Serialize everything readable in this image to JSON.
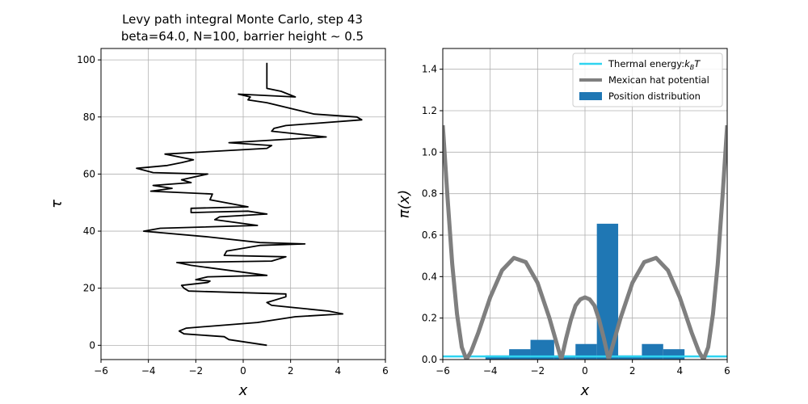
{
  "figure": {
    "title_line1": "Levy path integral Monte Carlo, step 43",
    "title_line2": "beta=64.0, N=100, barrier height$\\sim$0.5"
  },
  "chart_data": [
    {
      "type": "line",
      "title": "Levy path integral Monte Carlo, step 43 beta=64.0, N=100, barrier height ~ 0.5",
      "xlabel": "x",
      "ylabel": "τ",
      "xlim": [
        -6,
        6
      ],
      "ylim": [
        -5,
        104
      ],
      "xticks": [
        -6,
        -4,
        -2,
        0,
        2,
        4,
        6
      ],
      "yticks": [
        0,
        20,
        40,
        60,
        80,
        100
      ],
      "grid": true,
      "color": "#000000",
      "series": [
        {
          "name": "",
          "points": [
            [
              1.0,
              0
            ],
            [
              -0.6,
              2
            ],
            [
              -0.8,
              3
            ],
            [
              -2.5,
              4
            ],
            [
              -2.7,
              5
            ],
            [
              -2.4,
              6
            ],
            [
              0.6,
              8
            ],
            [
              2.2,
              10
            ],
            [
              4.2,
              11
            ],
            [
              3.6,
              12
            ],
            [
              1.2,
              14
            ],
            [
              1.0,
              15
            ],
            [
              1.8,
              17
            ],
            [
              1.8,
              18
            ],
            [
              -2.3,
              19
            ],
            [
              -2.5,
              20
            ],
            [
              -2.6,
              21
            ],
            [
              -1.5,
              22
            ],
            [
              -1.4,
              22.5
            ],
            [
              -2.0,
              23
            ],
            [
              -1.5,
              24
            ],
            [
              1.0,
              24.5
            ],
            [
              -2.2,
              28
            ],
            [
              -2.8,
              29
            ],
            [
              1.2,
              29.5
            ],
            [
              1.8,
              31
            ],
            [
              -0.8,
              31.5
            ],
            [
              -0.7,
              33
            ],
            [
              0.7,
              35
            ],
            [
              2.6,
              35.5
            ],
            [
              0.7,
              36
            ],
            [
              -1.5,
              38
            ],
            [
              -4.2,
              40
            ],
            [
              -3.5,
              41
            ],
            [
              0.6,
              42
            ],
            [
              -1.2,
              44
            ],
            [
              -1.0,
              45
            ],
            [
              1.0,
              46
            ],
            [
              0.2,
              47
            ],
            [
              -2.2,
              46.5
            ],
            [
              -2.2,
              48
            ],
            [
              0.2,
              48.5
            ],
            [
              -1.4,
              51
            ],
            [
              -1.3,
              53
            ],
            [
              -3.9,
              54
            ],
            [
              -3.0,
              55
            ],
            [
              -3.8,
              56
            ],
            [
              -2.2,
              57
            ],
            [
              -2.6,
              58
            ],
            [
              -1.5,
              60
            ],
            [
              -3.8,
              60.5
            ],
            [
              -4.5,
              62
            ],
            [
              -3.2,
              63
            ],
            [
              -2.6,
              64
            ],
            [
              -2.1,
              65
            ],
            [
              -3.3,
              67
            ],
            [
              1.0,
              69
            ],
            [
              1.2,
              70
            ],
            [
              -0.6,
              71
            ],
            [
              3.5,
              73
            ],
            [
              1.2,
              75
            ],
            [
              1.3,
              76
            ],
            [
              1.8,
              77
            ],
            [
              5.0,
              79
            ],
            [
              4.8,
              80
            ],
            [
              3.0,
              81
            ],
            [
              1.0,
              85
            ],
            [
              0.2,
              86
            ],
            [
              0.3,
              87
            ],
            [
              -0.2,
              88
            ],
            [
              2.2,
              87
            ],
            [
              1.6,
              89
            ],
            [
              1.0,
              90
            ],
            [
              1.0,
              92
            ],
            [
              1.0,
              99
            ]
          ]
        }
      ]
    },
    {
      "type": "bar",
      "xlabel": "x",
      "ylabel": "π(x)",
      "xlim": [
        -6,
        6
      ],
      "ylim": [
        0,
        1.5
      ],
      "xticks": [
        -6,
        -4,
        -2,
        0,
        2,
        4,
        6
      ],
      "yticks": [
        0.0,
        0.2,
        0.4,
        0.6,
        0.8,
        1.0,
        1.2,
        1.4
      ],
      "grid": true,
      "legend_position": "top-right",
      "legend": [
        {
          "label": "Thermal energy:$k_B T$",
          "color": "#2ed3f0",
          "kind": "line"
        },
        {
          "label": "Mexican hat potential",
          "color": "#7f7f7f",
          "kind": "thick-line"
        },
        {
          "label": "Position distribution",
          "color": "#1f77b4",
          "kind": "patch"
        }
      ],
      "series": [
        {
          "name": "Position distribution",
          "color": "#1f77b4",
          "bins": [
            {
              "x0": -4.2,
              "x1": -3.2,
              "value": 0.02
            },
            {
              "x0": -3.2,
              "x1": -2.3,
              "value": 0.05
            },
            {
              "x0": -2.3,
              "x1": -1.3,
              "value": 0.095
            },
            {
              "x0": -1.3,
              "x1": -0.4,
              "value": 0.02
            },
            {
              "x0": -0.4,
              "x1": 0.5,
              "value": 0.075
            },
            {
              "x0": 0.5,
              "x1": 1.4,
              "value": 0.655
            },
            {
              "x0": 1.4,
              "x1": 2.4,
              "value": 0.02
            },
            {
              "x0": 2.4,
              "x1": 3.3,
              "value": 0.075
            },
            {
              "x0": 3.3,
              "x1": 4.2,
              "value": 0.05
            }
          ]
        },
        {
          "name": "Thermal energy:$k_B T$",
          "color": "#2ed3f0",
          "value": 0.015
        },
        {
          "name": "Mexican hat potential",
          "color": "#7f7f7f",
          "formula": "V(x) = 0.3 * (x^2 - 1)^2 / (1 + x^2)^1.3 scaled; zero at x=±1 and x=±5",
          "points": [
            [
              -6.0,
              1.13
            ],
            [
              -5.8,
              0.78
            ],
            [
              -5.6,
              0.46
            ],
            [
              -5.4,
              0.22
            ],
            [
              -5.2,
              0.06
            ],
            [
              -5.0,
              0.0
            ],
            [
              -4.8,
              0.04
            ],
            [
              -4.5,
              0.13
            ],
            [
              -4.0,
              0.3
            ],
            [
              -3.5,
              0.43
            ],
            [
              -3.0,
              0.49
            ],
            [
              -2.5,
              0.47
            ],
            [
              -2.0,
              0.37
            ],
            [
              -1.5,
              0.2
            ],
            [
              -1.0,
              0.0
            ],
            [
              -0.8,
              0.1
            ],
            [
              -0.6,
              0.19
            ],
            [
              -0.4,
              0.26
            ],
            [
              -0.2,
              0.29
            ],
            [
              0.0,
              0.3
            ],
            [
              0.2,
              0.29
            ],
            [
              0.4,
              0.26
            ],
            [
              0.6,
              0.19
            ],
            [
              0.8,
              0.1
            ],
            [
              1.0,
              0.0
            ],
            [
              1.5,
              0.2
            ],
            [
              2.0,
              0.37
            ],
            [
              2.5,
              0.47
            ],
            [
              3.0,
              0.49
            ],
            [
              3.5,
              0.43
            ],
            [
              4.0,
              0.3
            ],
            [
              4.5,
              0.13
            ],
            [
              4.8,
              0.04
            ],
            [
              5.0,
              0.0
            ],
            [
              5.2,
              0.06
            ],
            [
              5.4,
              0.22
            ],
            [
              5.6,
              0.46
            ],
            [
              5.8,
              0.78
            ],
            [
              6.0,
              1.13
            ]
          ]
        }
      ]
    }
  ]
}
